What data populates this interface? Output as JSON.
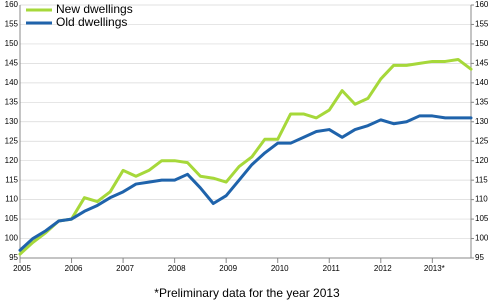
{
  "chart_data": {
    "type": "line",
    "caption": "*Preliminary data for the year 2013",
    "categories": [
      "2005",
      null,
      null,
      null,
      "2006",
      null,
      null,
      null,
      "2007",
      null,
      null,
      null,
      "2008",
      null,
      null,
      null,
      "2009",
      null,
      null,
      null,
      "2010",
      null,
      null,
      null,
      "2011",
      null,
      null,
      null,
      "2012",
      null,
      null,
      null,
      "2013*",
      null,
      null,
      null
    ],
    "series": [
      {
        "name": "New dwellings",
        "color": "#a6d83a",
        "values": [
          96,
          99,
          101.5,
          104.5,
          105,
          110.5,
          109.5,
          112,
          117.5,
          116,
          117.5,
          120,
          120,
          119.5,
          116,
          115.5,
          114.5,
          118.5,
          121,
          125.5,
          125.5,
          132,
          132,
          131,
          133,
          138,
          134.5,
          136,
          141,
          144.5,
          144.5,
          145,
          145.5,
          145.5,
          146,
          143.5
        ]
      },
      {
        "name": "Old dwellings",
        "color": "#1f63ab",
        "values": [
          97,
          100,
          102,
          104.5,
          105,
          107,
          108.5,
          110.5,
          112,
          114,
          114.5,
          115,
          115,
          116.5,
          113,
          109,
          111,
          115,
          119,
          122,
          124.5,
          124.5,
          126,
          127.5,
          128,
          126,
          128,
          129,
          130.5,
          129.5,
          130,
          131.5,
          131.5,
          131,
          131,
          131
        ]
      }
    ],
    "ylim": [
      95,
      160
    ],
    "yticks": [
      95,
      100,
      105,
      110,
      115,
      120,
      125,
      130,
      135,
      140,
      145,
      150,
      155,
      160
    ],
    "y2lim": [
      95,
      160
    ],
    "y2ticks": [
      95,
      100,
      105,
      110,
      115,
      120,
      125,
      130,
      135,
      140,
      145,
      150,
      155,
      160
    ],
    "grid": true,
    "legend": "top-left"
  }
}
